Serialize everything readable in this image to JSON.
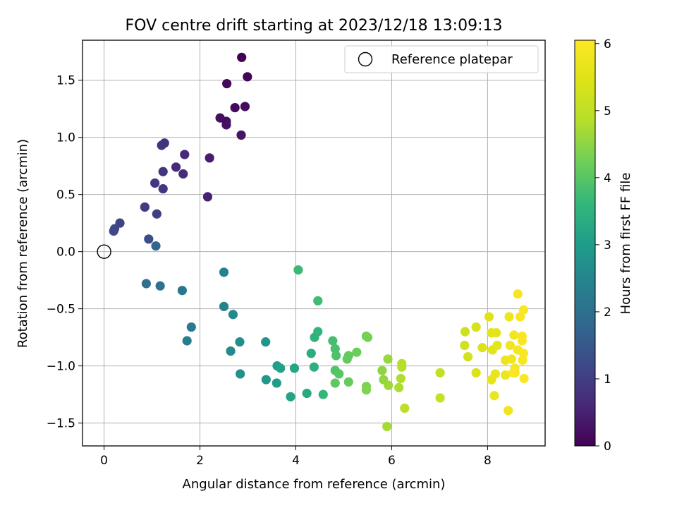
{
  "chart_data": {
    "type": "scatter",
    "title": "FOV centre drift starting at 2023/12/18 13:09:13",
    "xlabel": "Angular distance from reference (arcmin)",
    "ylabel": "Rotation from reference (arcmin)",
    "xlim": [
      -0.45,
      9.2
    ],
    "ylim": [
      -1.7,
      1.85
    ],
    "x_ticks": [
      0,
      2,
      4,
      6,
      8
    ],
    "y_ticks": [
      -1.5,
      -1.0,
      -0.5,
      0.0,
      0.5,
      1.0,
      1.5
    ],
    "grid": true,
    "legend": {
      "position": "top-right",
      "label": "Reference platepar"
    },
    "reference_point": {
      "x": 0,
      "y": 0
    },
    "colorbar": {
      "label": "Hours from first FF file",
      "colormap": "viridis",
      "range": [
        0,
        6.05
      ],
      "ticks": [
        0,
        1,
        2,
        3,
        4,
        5,
        6
      ]
    },
    "series": [
      {
        "points": [
          {
            "x": 2.87,
            "y": 1.7,
            "c": 0.0
          },
          {
            "x": 2.99,
            "y": 1.53,
            "c": 0.05
          },
          {
            "x": 2.56,
            "y": 1.47,
            "c": 0.1
          },
          {
            "x": 2.73,
            "y": 1.26,
            "c": 0.12
          },
          {
            "x": 2.94,
            "y": 1.27,
            "c": 0.15
          },
          {
            "x": 2.42,
            "y": 1.17,
            "c": 0.2
          },
          {
            "x": 2.55,
            "y": 1.14,
            "c": 0.22
          },
          {
            "x": 2.55,
            "y": 1.11,
            "c": 0.25
          },
          {
            "x": 2.86,
            "y": 1.02,
            "c": 0.28
          },
          {
            "x": 2.2,
            "y": 0.82,
            "c": 0.45
          },
          {
            "x": 2.16,
            "y": 0.48,
            "c": 0.5
          },
          {
            "x": 1.68,
            "y": 0.85,
            "c": 0.6
          },
          {
            "x": 1.5,
            "y": 0.74,
            "c": 0.65
          },
          {
            "x": 1.65,
            "y": 0.68,
            "c": 0.7
          },
          {
            "x": 1.26,
            "y": 0.95,
            "c": 0.8
          },
          {
            "x": 1.2,
            "y": 0.93,
            "c": 0.82
          },
          {
            "x": 1.23,
            "y": 0.7,
            "c": 0.85
          },
          {
            "x": 1.23,
            "y": 0.55,
            "c": 0.88
          },
          {
            "x": 1.06,
            "y": 0.6,
            "c": 0.9
          },
          {
            "x": 0.85,
            "y": 0.39,
            "c": 0.95
          },
          {
            "x": 1.1,
            "y": 0.33,
            "c": 1.0
          },
          {
            "x": 0.33,
            "y": 0.25,
            "c": 1.1
          },
          {
            "x": 0.22,
            "y": 0.2,
            "c": 1.15
          },
          {
            "x": 0.2,
            "y": 0.18,
            "c": 1.2
          },
          {
            "x": 0.93,
            "y": 0.11,
            "c": 1.3
          },
          {
            "x": 1.08,
            "y": 0.05,
            "c": 1.8
          },
          {
            "x": 0.88,
            "y": -0.28,
            "c": 2.0
          },
          {
            "x": 1.17,
            "y": -0.3,
            "c": 2.05
          },
          {
            "x": 1.63,
            "y": -0.34,
            "c": 2.15
          },
          {
            "x": 1.82,
            "y": -0.66,
            "c": 2.25
          },
          {
            "x": 1.73,
            "y": -0.78,
            "c": 2.3
          },
          {
            "x": 2.5,
            "y": -0.18,
            "c": 2.4
          },
          {
            "x": 2.5,
            "y": -0.48,
            "c": 2.45
          },
          {
            "x": 2.69,
            "y": -0.55,
            "c": 2.55
          },
          {
            "x": 2.64,
            "y": -0.87,
            "c": 2.6
          },
          {
            "x": 2.83,
            "y": -0.79,
            "c": 2.7
          },
          {
            "x": 2.84,
            "y": -1.07,
            "c": 2.75
          },
          {
            "x": 3.37,
            "y": -0.79,
            "c": 2.85
          },
          {
            "x": 3.38,
            "y": -1.12,
            "c": 2.9
          },
          {
            "x": 3.6,
            "y": -1.15,
            "c": 3.0
          },
          {
            "x": 3.61,
            "y": -1.0,
            "c": 3.05
          },
          {
            "x": 3.68,
            "y": -1.02,
            "c": 3.1
          },
          {
            "x": 3.89,
            "y": -1.27,
            "c": 3.15
          },
          {
            "x": 3.97,
            "y": -1.02,
            "c": 3.2
          },
          {
            "x": 4.23,
            "y": -1.24,
            "c": 3.3
          },
          {
            "x": 4.32,
            "y": -0.89,
            "c": 3.4
          },
          {
            "x": 4.38,
            "y": -1.01,
            "c": 3.45
          },
          {
            "x": 4.39,
            "y": -0.75,
            "c": 3.5
          },
          {
            "x": 4.46,
            "y": -0.7,
            "c": 3.55
          },
          {
            "x": 4.57,
            "y": -1.25,
            "c": 3.6
          },
          {
            "x": 4.05,
            "y": -0.16,
            "c": 3.7
          },
          {
            "x": 4.46,
            "y": -0.43,
            "c": 3.75
          },
          {
            "x": 4.77,
            "y": -0.78,
            "c": 3.8
          },
          {
            "x": 4.82,
            "y": -0.85,
            "c": 3.85
          },
          {
            "x": 4.84,
            "y": -0.91,
            "c": 3.9
          },
          {
            "x": 4.82,
            "y": -1.04,
            "c": 3.95
          },
          {
            "x": 4.9,
            "y": -1.07,
            "c": 4.0
          },
          {
            "x": 4.82,
            "y": -1.15,
            "c": 4.05
          },
          {
            "x": 5.07,
            "y": -0.94,
            "c": 4.1
          },
          {
            "x": 5.1,
            "y": -0.91,
            "c": 4.12
          },
          {
            "x": 5.1,
            "y": -1.14,
            "c": 4.15
          },
          {
            "x": 5.27,
            "y": -0.88,
            "c": 4.2
          },
          {
            "x": 5.47,
            "y": -0.74,
            "c": 4.25
          },
          {
            "x": 5.5,
            "y": -0.75,
            "c": 4.3
          },
          {
            "x": 5.47,
            "y": -1.18,
            "c": 4.35
          },
          {
            "x": 5.47,
            "y": -1.21,
            "c": 4.4
          },
          {
            "x": 5.8,
            "y": -1.04,
            "c": 4.5
          },
          {
            "x": 5.83,
            "y": -1.12,
            "c": 4.55
          },
          {
            "x": 5.92,
            "y": -0.94,
            "c": 4.6
          },
          {
            "x": 5.93,
            "y": -1.17,
            "c": 4.65
          },
          {
            "x": 5.9,
            "y": -1.53,
            "c": 4.7
          },
          {
            "x": 6.15,
            "y": -1.19,
            "c": 4.75
          },
          {
            "x": 6.19,
            "y": -1.11,
            "c": 4.8
          },
          {
            "x": 6.21,
            "y": -0.98,
            "c": 4.85
          },
          {
            "x": 6.21,
            "y": -1.01,
            "c": 4.87
          },
          {
            "x": 6.27,
            "y": -1.37,
            "c": 4.95
          },
          {
            "x": 7.01,
            "y": -1.06,
            "c": 5.05
          },
          {
            "x": 7.01,
            "y": -1.28,
            "c": 5.1
          },
          {
            "x": 7.53,
            "y": -0.7,
            "c": 5.2
          },
          {
            "x": 7.52,
            "y": -0.82,
            "c": 5.25
          },
          {
            "x": 7.59,
            "y": -0.92,
            "c": 5.3
          },
          {
            "x": 7.76,
            "y": -0.66,
            "c": 5.35
          },
          {
            "x": 7.76,
            "y": -1.06,
            "c": 5.4
          },
          {
            "x": 7.89,
            "y": -0.84,
            "c": 5.45
          },
          {
            "x": 8.03,
            "y": -0.57,
            "c": 5.5
          },
          {
            "x": 8.08,
            "y": -0.71,
            "c": 5.55
          },
          {
            "x": 8.1,
            "y": -0.86,
            "c": 5.58
          },
          {
            "x": 8.18,
            "y": -0.71,
            "c": 5.6
          },
          {
            "x": 8.2,
            "y": -0.82,
            "c": 5.62
          },
          {
            "x": 8.08,
            "y": -1.12,
            "c": 5.65
          },
          {
            "x": 8.16,
            "y": -1.07,
            "c": 5.68
          },
          {
            "x": 8.14,
            "y": -1.26,
            "c": 5.7
          },
          {
            "x": 8.37,
            "y": -0.95,
            "c": 5.72
          },
          {
            "x": 8.37,
            "y": -1.08,
            "c": 5.74
          },
          {
            "x": 8.43,
            "y": -1.39,
            "c": 5.76
          },
          {
            "x": 8.45,
            "y": -0.57,
            "c": 5.78
          },
          {
            "x": 8.47,
            "y": -0.82,
            "c": 5.8
          },
          {
            "x": 8.5,
            "y": -0.94,
            "c": 5.82
          },
          {
            "x": 8.55,
            "y": -0.73,
            "c": 5.84
          },
          {
            "x": 8.57,
            "y": -1.06,
            "c": 5.86
          },
          {
            "x": 8.57,
            "y": -1.02,
            "c": 5.88
          },
          {
            "x": 8.63,
            "y": -0.86,
            "c": 5.9
          },
          {
            "x": 8.63,
            "y": -0.37,
            "c": 5.92
          },
          {
            "x": 8.68,
            "y": -0.57,
            "c": 5.94
          },
          {
            "x": 8.72,
            "y": -0.74,
            "c": 5.95
          },
          {
            "x": 8.72,
            "y": -0.78,
            "c": 5.96
          },
          {
            "x": 8.73,
            "y": -0.95,
            "c": 5.97
          },
          {
            "x": 8.75,
            "y": -0.89,
            "c": 5.98
          },
          {
            "x": 8.75,
            "y": -0.51,
            "c": 5.99
          },
          {
            "x": 8.76,
            "y": -1.11,
            "c": 6.0
          },
          {
            "x": 8.53,
            "y": -1.06,
            "c": 6.02
          }
        ]
      }
    ]
  }
}
